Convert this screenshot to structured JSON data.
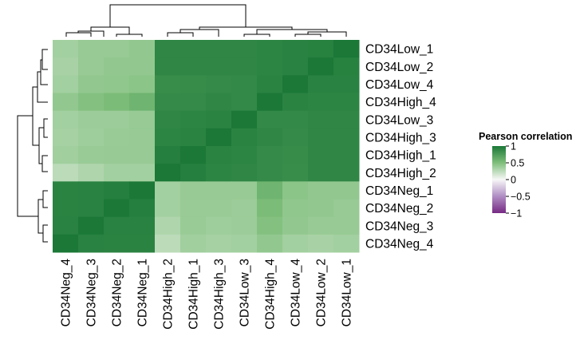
{
  "chart_data": {
    "type": "heatmap",
    "row_labels": [
      "CD34Low_1",
      "CD34Low_2",
      "CD34Low_4",
      "CD34High_4",
      "CD34Low_3",
      "CD34High_3",
      "CD34High_1",
      "CD34High_2",
      "CD34Neg_1",
      "CD34Neg_2",
      "CD34Neg_3",
      "CD34Neg_4"
    ],
    "col_labels": [
      "CD34Neg_4",
      "CD34Neg_3",
      "CD34Neg_2",
      "CD34Neg_1",
      "CD34High_2",
      "CD34High_1",
      "CD34High_3",
      "CD34Low_3",
      "CD34High_4",
      "CD34Low_4",
      "CD34Low_2",
      "CD34Low_1"
    ],
    "values": [
      [
        0.35,
        0.4,
        0.4,
        0.42,
        0.9,
        0.9,
        0.9,
        0.9,
        0.91,
        0.93,
        0.94,
        1.0
      ],
      [
        0.33,
        0.4,
        0.42,
        0.42,
        0.9,
        0.9,
        0.9,
        0.9,
        0.91,
        0.93,
        1.0,
        0.94
      ],
      [
        0.35,
        0.42,
        0.43,
        0.45,
        0.85,
        0.86,
        0.87,
        0.88,
        0.92,
        1.0,
        0.93,
        0.93
      ],
      [
        0.42,
        0.48,
        0.52,
        0.58,
        0.87,
        0.87,
        0.9,
        0.88,
        1.0,
        0.92,
        0.91,
        0.91
      ],
      [
        0.35,
        0.38,
        0.38,
        0.4,
        0.9,
        0.91,
        0.92,
        1.0,
        0.88,
        0.88,
        0.9,
        0.9
      ],
      [
        0.34,
        0.37,
        0.39,
        0.4,
        0.91,
        0.92,
        1.0,
        0.92,
        0.9,
        0.87,
        0.9,
        0.9
      ],
      [
        0.36,
        0.39,
        0.4,
        0.4,
        0.95,
        1.0,
        0.92,
        0.91,
        0.87,
        0.86,
        0.9,
        0.9
      ],
      [
        0.25,
        0.3,
        0.35,
        0.35,
        1.0,
        0.95,
        0.91,
        0.9,
        0.87,
        0.85,
        0.9,
        0.9
      ],
      [
        0.92,
        0.93,
        0.95,
        1.0,
        0.35,
        0.4,
        0.4,
        0.4,
        0.58,
        0.45,
        0.42,
        0.42
      ],
      [
        0.92,
        0.93,
        1.0,
        0.95,
        0.35,
        0.39,
        0.39,
        0.38,
        0.52,
        0.43,
        0.42,
        0.4
      ],
      [
        0.93,
        1.0,
        0.93,
        0.93,
        0.3,
        0.39,
        0.37,
        0.38,
        0.48,
        0.42,
        0.4,
        0.4
      ],
      [
        1.0,
        0.93,
        0.92,
        0.92,
        0.25,
        0.36,
        0.34,
        0.35,
        0.42,
        0.35,
        0.33,
        0.35
      ]
    ],
    "legend": {
      "title": "Pearson correlation",
      "ticks": [
        1,
        0.5,
        0,
        -0.5,
        -1
      ],
      "tick_labels": [
        "1",
        "0.5",
        "0",
        "−0.5",
        "−1"
      ],
      "colors": [
        "#1b7837",
        "#7fbf7b",
        "#f7f7f7",
        "#af8dc3",
        "#762a83"
      ]
    }
  }
}
